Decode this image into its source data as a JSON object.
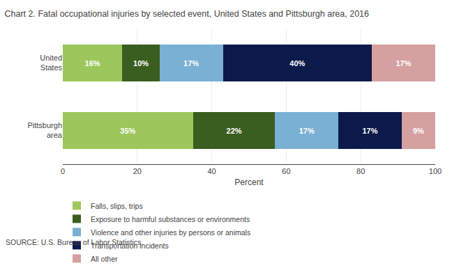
{
  "chart_data": {
    "type": "bar",
    "orientation": "horizontal",
    "stacked": true,
    "title": "Chart 2. Fatal occupational injuries by selected event, United States and Pittsburgh area, 2016",
    "categories": [
      "United\nStates",
      "Pittsburgh\narea"
    ],
    "series": [
      {
        "name": "Falls, slips, trips",
        "color": "#9dc75c",
        "values": [
          16,
          35
        ],
        "value_labels": [
          "16%",
          "35%"
        ]
      },
      {
        "name": "Exposure to harmful substances or environments",
        "color": "#3a5e1f",
        "values": [
          10,
          22
        ],
        "value_labels": [
          "10%",
          "22%"
        ]
      },
      {
        "name": "Violence and other injuries by persons or animals",
        "color": "#7ab0d4",
        "values": [
          17,
          17
        ],
        "value_labels": [
          "17%",
          "17%"
        ]
      },
      {
        "name": "Transportation incidents",
        "color": "#0c1a4b",
        "values": [
          40,
          17
        ],
        "value_labels": [
          "40%",
          "17%"
        ]
      },
      {
        "name": "All other",
        "color": "#d4a0a0",
        "values": [
          17,
          9
        ],
        "value_labels": [
          "17%",
          "9%"
        ]
      }
    ],
    "xlabel": "Percent",
    "xlim": [
      0,
      100
    ],
    "xticks": [
      0,
      20,
      40,
      60,
      80,
      100
    ],
    "grid": true,
    "legend": "bottom",
    "data_labels": true,
    "annotations": [
      "SOURCE: U.S. Bureau of Labor Statistics."
    ]
  }
}
